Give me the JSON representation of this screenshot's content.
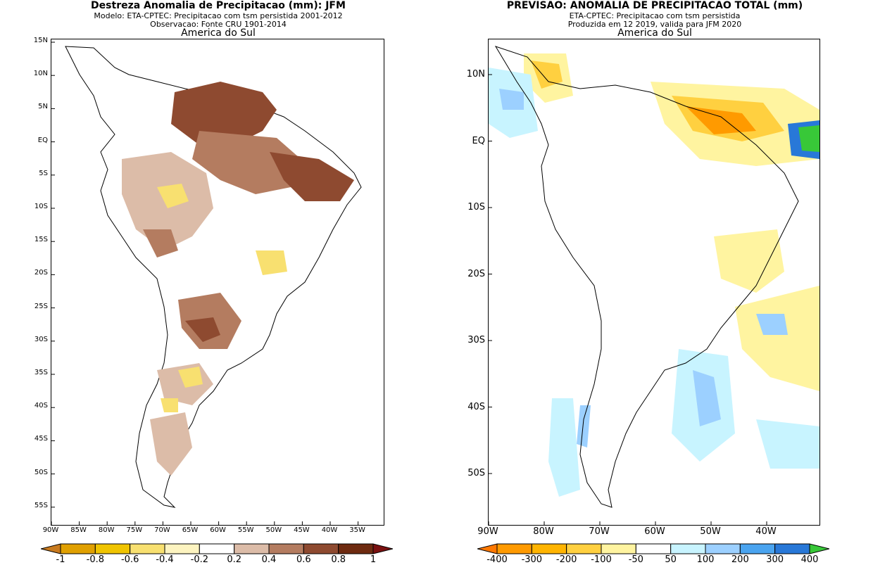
{
  "left_panel": {
    "title": "Destreza Anomalia de Precipitacao (mm): JFM",
    "subtitle_1": "Modelo: ETA-CPTEC: Precipitacao com tsm persistida 2001-2012",
    "subtitle_2": "Observacao: Fonte CRU 1901-2014",
    "region": "America do Sul",
    "lat_ticks": [
      "15N",
      "10N",
      "5N",
      "EQ",
      "5S",
      "10S",
      "15S",
      "20S",
      "25S",
      "30S",
      "35S",
      "40S",
      "45S",
      "50S",
      "55S"
    ],
    "lon_ticks": [
      "90W",
      "85W",
      "80W",
      "75W",
      "70W",
      "65W",
      "60W",
      "55W",
      "50W",
      "45W",
      "40W",
      "35W"
    ],
    "colorbar": {
      "labels": [
        "-1",
        "-0.8",
        "-0.6",
        "-0.4",
        "-0.2",
        "0.2",
        "0.4",
        "0.6",
        "0.8",
        "1"
      ],
      "colors": [
        "#c87a1e",
        "#e0a000",
        "#f0c400",
        "#f8e070",
        "#fdf4c0",
        "#ffffff",
        "#dcbca8",
        "#b47c60",
        "#8e4a30",
        "#6e2a10",
        "#7a1010"
      ]
    }
  },
  "right_panel": {
    "title": "PREVISAO: ANOMALIA DE PRECIPITACAO TOTAL (mm)",
    "subtitle_1": "ETA-CPTEC: Precipitacao com tsm persistida",
    "subtitle_2": "Produzida em 12 2019, valida para JFM 2020",
    "region": "America do Sul",
    "lat_ticks": [
      "10N",
      "EQ",
      "10S",
      "20S",
      "30S",
      "40S",
      "50S"
    ],
    "lon_ticks": [
      "90W",
      "80W",
      "70W",
      "60W",
      "50W",
      "40W"
    ],
    "colorbar": {
      "labels": [
        "-400",
        "-300",
        "-200",
        "-100",
        "-50",
        "50",
        "100",
        "200",
        "300",
        "400"
      ],
      "colors": [
        "#ff7800",
        "#ff9a00",
        "#ffb400",
        "#ffd040",
        "#fff4a0",
        "#ffffff",
        "#c8f4ff",
        "#9cd0ff",
        "#4aa4f0",
        "#2878d8",
        "#38c838"
      ]
    }
  }
}
